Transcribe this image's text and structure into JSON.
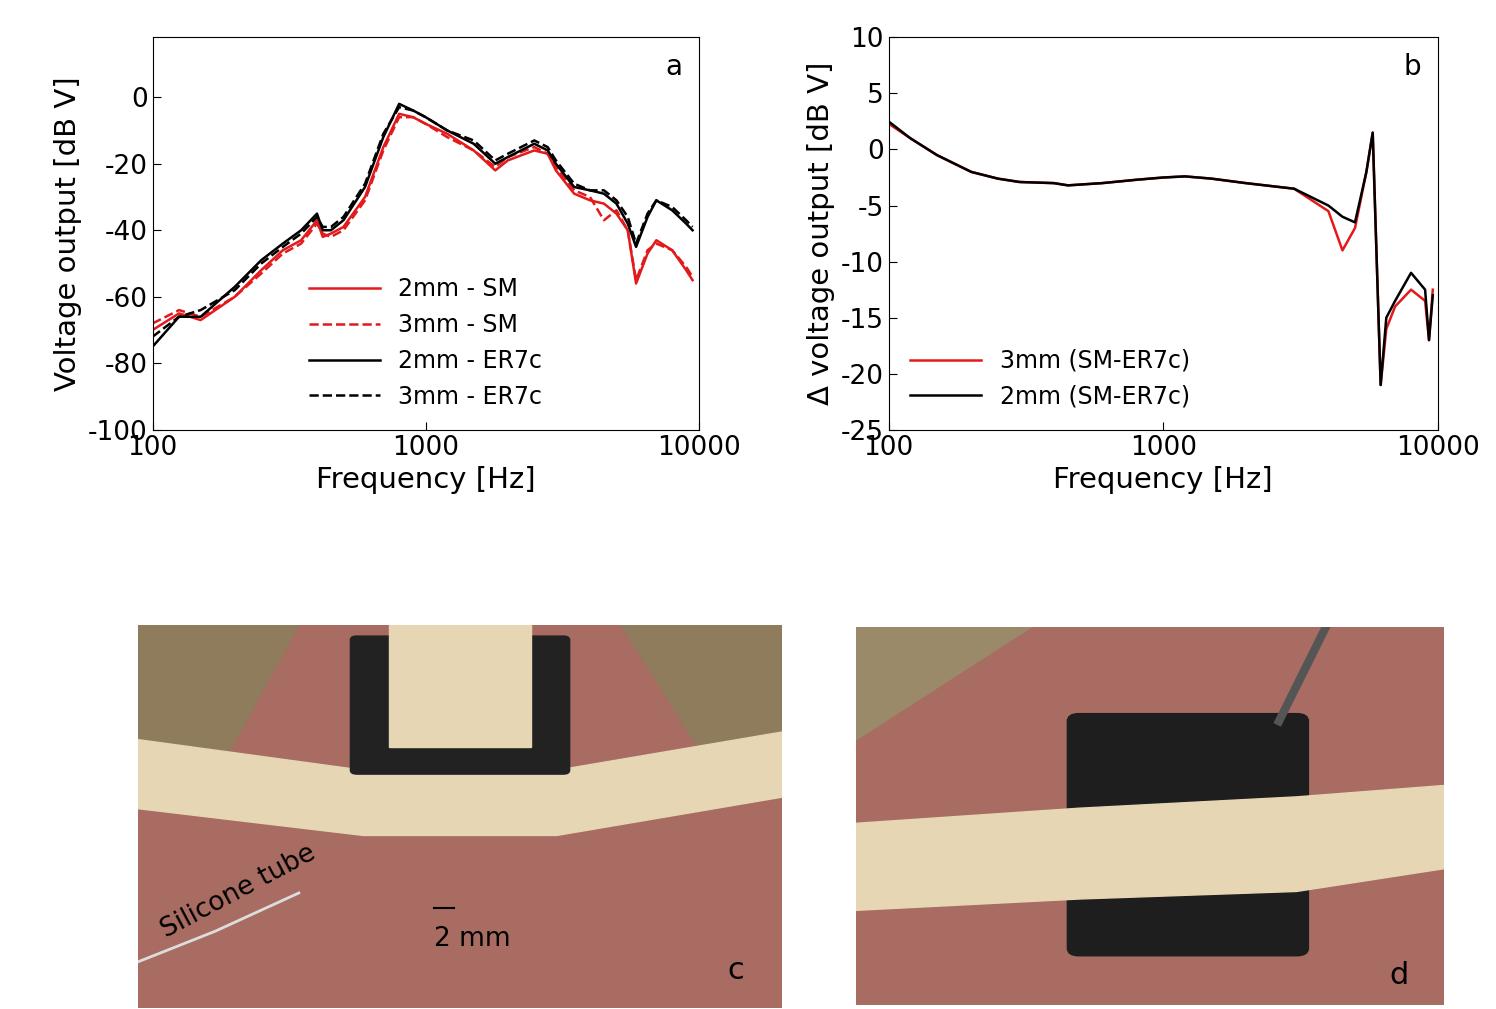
{
  "chart_data": [
    {
      "type": "line",
      "log": "x",
      "grid": false,
      "legend": "lower center",
      "annotations": [
        "a"
      ],
      "x_label": "Frequency [Hz]",
      "y_label": "Voltage output [dB V]",
      "xlim": [
        100,
        10000
      ],
      "xticks": [
        100,
        1000,
        10000
      ],
      "ylim": [
        -100,
        18
      ],
      "yticks": [
        -100,
        -80,
        -60,
        -40,
        -20,
        0
      ],
      "x": [
        100,
        125,
        150,
        200,
        250,
        300,
        350,
        400,
        420,
        450,
        500,
        600,
        700,
        800,
        900,
        1000,
        1200,
        1500,
        1800,
        2000,
        2500,
        2800,
        3000,
        3500,
        4000,
        4500,
        5000,
        5500,
        5900,
        6500,
        7000,
        8000,
        9000,
        9500
      ],
      "series": [
        {
          "name": "2mm - SM",
          "color": "#e31a1c",
          "line_style": "solid",
          "values": [
            -70,
            -65,
            -67,
            -60,
            -52,
            -46,
            -43,
            -37,
            -42,
            -41,
            -39,
            -30,
            -15,
            -5,
            -6,
            -8,
            -11,
            -16,
            -22,
            -19,
            -16,
            -17,
            -22,
            -29,
            -31,
            -32,
            -35,
            -40,
            -56,
            -47,
            -43,
            -46,
            -52,
            -55
          ]
        },
        {
          "name": "3mm - SM",
          "color": "#e31a1c",
          "line_style": "dashed",
          "values": [
            -68,
            -64,
            -66,
            -60,
            -53,
            -47,
            -44,
            -38,
            -41,
            -42,
            -40,
            -31,
            -16,
            -6,
            -6,
            -8,
            -12,
            -16,
            -21,
            -18,
            -15,
            -17,
            -21,
            -28,
            -30,
            -37,
            -34,
            -40,
            -55,
            -46,
            -44,
            -46,
            -51,
            -54
          ]
        },
        {
          "name": "2mm - ER7c",
          "color": "#000000",
          "line_style": "solid",
          "values": [
            -75,
            -66,
            -66,
            -57,
            -49,
            -44,
            -40,
            -35,
            -40,
            -40,
            -37,
            -27,
            -12,
            -2,
            -4,
            -6,
            -10,
            -14,
            -20,
            -18,
            -14,
            -16,
            -20,
            -27,
            -28,
            -29,
            -32,
            -38,
            -45,
            -36,
            -31,
            -34,
            -38,
            -40
          ]
        },
        {
          "name": "3mm - ER7c",
          "color": "#000000",
          "line_style": "dashed",
          "values": [
            -72,
            -66,
            -64,
            -58,
            -50,
            -45,
            -41,
            -36,
            -39,
            -39,
            -36,
            -26,
            -11,
            -3,
            -4,
            -6,
            -10,
            -13,
            -19,
            -17,
            -13,
            -15,
            -19,
            -26,
            -28,
            -28,
            -31,
            -36,
            -44,
            -35,
            -31,
            -33,
            -37,
            -39
          ]
        }
      ]
    },
    {
      "type": "line",
      "log": "x",
      "grid": false,
      "legend": "lower left",
      "annotations": [
        "b"
      ],
      "x_label": "Frequency [Hz]",
      "y_label": "Δ voltage output [dB V]",
      "xlim": [
        100,
        10000
      ],
      "xticks": [
        100,
        1000,
        10000
      ],
      "ylim": [
        -25,
        10
      ],
      "yticks": [
        -25,
        -20,
        -15,
        -10,
        -5,
        0,
        5,
        10
      ],
      "x": [
        100,
        120,
        150,
        200,
        250,
        300,
        400,
        450,
        600,
        800,
        1000,
        1200,
        1500,
        2000,
        3000,
        4000,
        4500,
        5000,
        5500,
        5800,
        6000,
        6200,
        6500,
        7000,
        8000,
        9000,
        9300,
        9600
      ],
      "series": [
        {
          "name": "3mm (SM-ER7c)",
          "color": "#e31a1c",
          "line_style": "solid",
          "values": [
            2.3,
            1,
            -0.5,
            -2,
            -2.6,
            -2.9,
            -3,
            -3.2,
            -3,
            -2.7,
            -2.5,
            -2.4,
            -2.6,
            -3,
            -3.5,
            -5.5,
            -9,
            -7,
            -2,
            1.5,
            -10,
            -21,
            -16,
            -14,
            -12.5,
            -13.5,
            -17,
            -12.5
          ]
        },
        {
          "name": "2mm (SM-ER7c)",
          "color": "#000000",
          "line_style": "solid",
          "values": [
            2.5,
            1,
            -0.5,
            -2,
            -2.6,
            -2.9,
            -3,
            -3.2,
            -3,
            -2.7,
            -2.5,
            -2.4,
            -2.6,
            -3,
            -3.5,
            -5,
            -6,
            -6.5,
            -2,
            1.5,
            -10,
            -21,
            -15,
            -13.5,
            -11,
            -12.5,
            -17,
            -13
          ]
        }
      ]
    }
  ],
  "photos": [
    {
      "panel_label": "c",
      "labels": [
        "Silicone tube",
        "2 mm"
      ]
    },
    {
      "panel_label": "d",
      "labels": []
    }
  ]
}
